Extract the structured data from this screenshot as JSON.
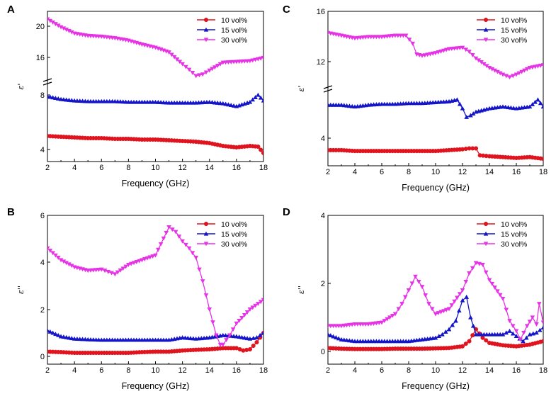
{
  "colors": {
    "red": "#e0141e",
    "blue": "#1414c8",
    "magenta": "#e633e6"
  },
  "chart_data": [
    {
      "panel": "A",
      "type": "line",
      "xlabel": "Frequency (GHz)",
      "ylabel": "ε'",
      "xlim": [
        2,
        18
      ],
      "x_ticks": [
        "2",
        "4",
        "6",
        "8",
        "10",
        "12",
        "14",
        "16",
        "18"
      ],
      "y_ticks": [
        "4",
        "8",
        "16",
        "20"
      ],
      "axis_break": "between 8 and 16",
      "legend_position": "top-right",
      "series": [
        {
          "name": "10 vol%",
          "color": "red",
          "marker": "circle",
          "x": [
            2,
            3,
            4,
            5,
            6,
            7,
            8,
            9,
            10,
            11,
            12,
            13,
            14,
            15,
            16,
            17,
            17.6,
            18
          ],
          "y": [
            5.0,
            4.95,
            4.9,
            4.85,
            4.85,
            4.8,
            4.8,
            4.75,
            4.75,
            4.7,
            4.65,
            4.6,
            4.5,
            4.3,
            4.2,
            4.3,
            4.25,
            3.8
          ]
        },
        {
          "name": "15 vol%",
          "color": "blue",
          "marker": "triangle-up",
          "x": [
            2,
            3,
            4,
            5,
            6,
            7,
            8,
            9,
            10,
            11,
            12,
            13,
            14,
            15,
            16,
            17,
            17.6,
            18
          ],
          "y": [
            7.8,
            7.6,
            7.5,
            7.45,
            7.45,
            7.45,
            7.4,
            7.4,
            7.4,
            7.35,
            7.35,
            7.35,
            7.4,
            7.3,
            7.1,
            7.4,
            7.9,
            7.5
          ]
        },
        {
          "name": "30 vol%",
          "color": "magenta",
          "marker": "triangle-down",
          "x": [
            2,
            3,
            4,
            5,
            6,
            7,
            8,
            9,
            10,
            11,
            12,
            12.5,
            13,
            13.5,
            14,
            15,
            16,
            17,
            18
          ],
          "y": [
            20.5,
            19.5,
            18.7,
            18.4,
            18.3,
            18.1,
            17.8,
            17.3,
            16.9,
            16.3,
            14.8,
            14.1,
            13.3,
            13.5,
            14.0,
            15.0,
            15.1,
            15.2,
            15.6
          ]
        }
      ]
    },
    {
      "panel": "B",
      "type": "line",
      "xlabel": "Frequency (GHz)",
      "ylabel": "ε''",
      "xlim": [
        2,
        18
      ],
      "ylim": [
        -0.3,
        6
      ],
      "x_ticks": [
        "2",
        "4",
        "6",
        "8",
        "10",
        "12",
        "14",
        "16",
        "18"
      ],
      "y_ticks": [
        "0",
        "2",
        "4",
        "6"
      ],
      "legend_position": "top-right",
      "series": [
        {
          "name": "10 vol%",
          "color": "red",
          "marker": "circle",
          "x": [
            2,
            3,
            4,
            5,
            6,
            7,
            8,
            9,
            10,
            11,
            12,
            13,
            14,
            15,
            16,
            16.5,
            17,
            17.5,
            18
          ],
          "y": [
            0.2,
            0.18,
            0.15,
            0.15,
            0.15,
            0.15,
            0.15,
            0.18,
            0.2,
            0.2,
            0.25,
            0.28,
            0.3,
            0.35,
            0.35,
            0.25,
            0.3,
            0.6,
            1.0
          ]
        },
        {
          "name": "15 vol%",
          "color": "blue",
          "marker": "triangle-up",
          "x": [
            2,
            3,
            4,
            5,
            6,
            7,
            8,
            9,
            10,
            11,
            12,
            13,
            14,
            15,
            16,
            17,
            17.5,
            18
          ],
          "y": [
            1.1,
            0.85,
            0.75,
            0.72,
            0.7,
            0.7,
            0.7,
            0.7,
            0.7,
            0.7,
            0.8,
            0.75,
            0.8,
            0.9,
            0.85,
            0.75,
            0.8,
            1.0
          ]
        },
        {
          "name": "30 vol%",
          "color": "magenta",
          "marker": "triangle-down",
          "x": [
            2,
            3,
            4,
            5,
            6,
            6.5,
            7,
            8,
            9,
            10,
            11,
            11.5,
            12,
            12.5,
            13,
            13.5,
            14,
            14.5,
            14.8,
            15,
            15.5,
            16,
            17,
            18
          ],
          "y": [
            4.6,
            4.1,
            3.8,
            3.65,
            3.7,
            3.6,
            3.5,
            3.9,
            4.1,
            4.3,
            5.5,
            5.3,
            4.9,
            4.6,
            4.2,
            3.2,
            2.0,
            0.9,
            0.5,
            0.5,
            0.9,
            1.4,
            2.0,
            2.4
          ]
        }
      ]
    },
    {
      "panel": "C",
      "type": "line",
      "xlabel": "Frequency (GHz)",
      "ylabel": "ε'",
      "xlim": [
        2,
        18
      ],
      "x_ticks": [
        "2",
        "4",
        "6",
        "8",
        "10",
        "12",
        "14",
        "16",
        "18"
      ],
      "y_ticks": [
        "4",
        "12",
        "16"
      ],
      "axis_break": "between 8 and 12",
      "legend_position": "top-right",
      "series": [
        {
          "name": "10 vol%",
          "color": "red",
          "marker": "circle",
          "x": [
            2,
            3,
            4,
            5,
            6,
            7,
            8,
            9,
            10,
            11,
            12,
            12.5,
            13,
            13.3,
            14,
            15,
            16,
            17,
            18
          ],
          "y": [
            4.1,
            4.1,
            4.05,
            4.05,
            4.05,
            4.05,
            4.05,
            4.05,
            4.05,
            4.1,
            4.15,
            4.2,
            4.2,
            3.8,
            3.75,
            3.7,
            3.65,
            3.7,
            3.6
          ]
        },
        {
          "name": "15 vol%",
          "color": "blue",
          "marker": "triangle-up",
          "x": [
            2,
            3,
            4,
            5,
            6,
            7,
            8,
            9,
            10,
            11,
            11.6,
            12,
            12.3,
            12.6,
            13,
            14,
            15,
            16,
            17,
            17.6,
            18
          ],
          "y": [
            6.7,
            6.7,
            6.6,
            6.7,
            6.75,
            6.75,
            6.8,
            6.8,
            6.85,
            6.9,
            7.0,
            6.5,
            6.0,
            6.1,
            6.3,
            6.5,
            6.6,
            6.5,
            6.6,
            7.0,
            6.6
          ]
        },
        {
          "name": "30 vol%",
          "color": "magenta",
          "marker": "triangle-down",
          "x": [
            2,
            3,
            4,
            5,
            6,
            7,
            7.8,
            8.3,
            8.6,
            9,
            10,
            11,
            12,
            12.5,
            13,
            14,
            15,
            15.5,
            16,
            17,
            18
          ],
          "y": [
            14.4,
            14.2,
            14.0,
            14.1,
            14.1,
            14.2,
            14.2,
            13.6,
            12.8,
            12.7,
            12.9,
            13.2,
            13.3,
            13.0,
            12.5,
            11.8,
            11.3,
            11.1,
            11.3,
            11.8,
            12.0
          ]
        }
      ]
    },
    {
      "panel": "D",
      "type": "line",
      "xlabel": "Frequency (GHz)",
      "ylabel": "ε''",
      "xlim": [
        2,
        18
      ],
      "ylim": [
        -0.3,
        4
      ],
      "x_ticks": [
        "2",
        "4",
        "6",
        "8",
        "10",
        "12",
        "14",
        "16",
        "18"
      ],
      "y_ticks": [
        "0",
        "2",
        "4"
      ],
      "legend_position": "top-right",
      "series": [
        {
          "name": "10 vol%",
          "color": "red",
          "marker": "circle",
          "x": [
            2,
            3,
            4,
            5,
            6,
            7,
            8,
            9,
            10,
            11,
            12,
            12.5,
            13,
            13.5,
            14,
            15,
            16,
            17,
            18
          ],
          "y": [
            0.1,
            0.08,
            0.07,
            0.07,
            0.07,
            0.08,
            0.08,
            0.08,
            0.09,
            0.1,
            0.15,
            0.3,
            0.65,
            0.4,
            0.25,
            0.18,
            0.15,
            0.2,
            0.3
          ]
        },
        {
          "name": "15 vol%",
          "color": "blue",
          "marker": "triangle-up",
          "x": [
            2,
            3,
            4,
            5,
            6,
            7,
            8,
            9,
            10,
            10.5,
            11,
            11.5,
            12,
            12.3,
            12.6,
            13,
            14,
            15,
            15.5,
            16,
            16.5,
            17,
            17.5,
            18
          ],
          "y": [
            0.5,
            0.35,
            0.3,
            0.3,
            0.3,
            0.3,
            0.3,
            0.35,
            0.4,
            0.5,
            0.65,
            0.9,
            1.5,
            1.6,
            1.0,
            0.5,
            0.5,
            0.5,
            0.6,
            0.45,
            0.3,
            0.5,
            0.55,
            0.7
          ]
        },
        {
          "name": "30 vol%",
          "color": "magenta",
          "marker": "triangle-down",
          "x": [
            2,
            3,
            4,
            5,
            6,
            7,
            7.5,
            8,
            8.5,
            9,
            9.5,
            10,
            11,
            12,
            12.5,
            13,
            13.5,
            14,
            15,
            15.5,
            16,
            16.3,
            16.8,
            17.2,
            17.5,
            17.7,
            18
          ],
          "y": [
            0.75,
            0.75,
            0.8,
            0.8,
            0.85,
            1.1,
            1.4,
            1.8,
            2.2,
            1.9,
            1.4,
            1.1,
            1.25,
            1.8,
            2.3,
            2.6,
            2.55,
            2.1,
            1.55,
            0.9,
            0.6,
            0.35,
            0.75,
            1.0,
            0.8,
            1.4,
            0.85
          ]
        }
      ]
    }
  ]
}
